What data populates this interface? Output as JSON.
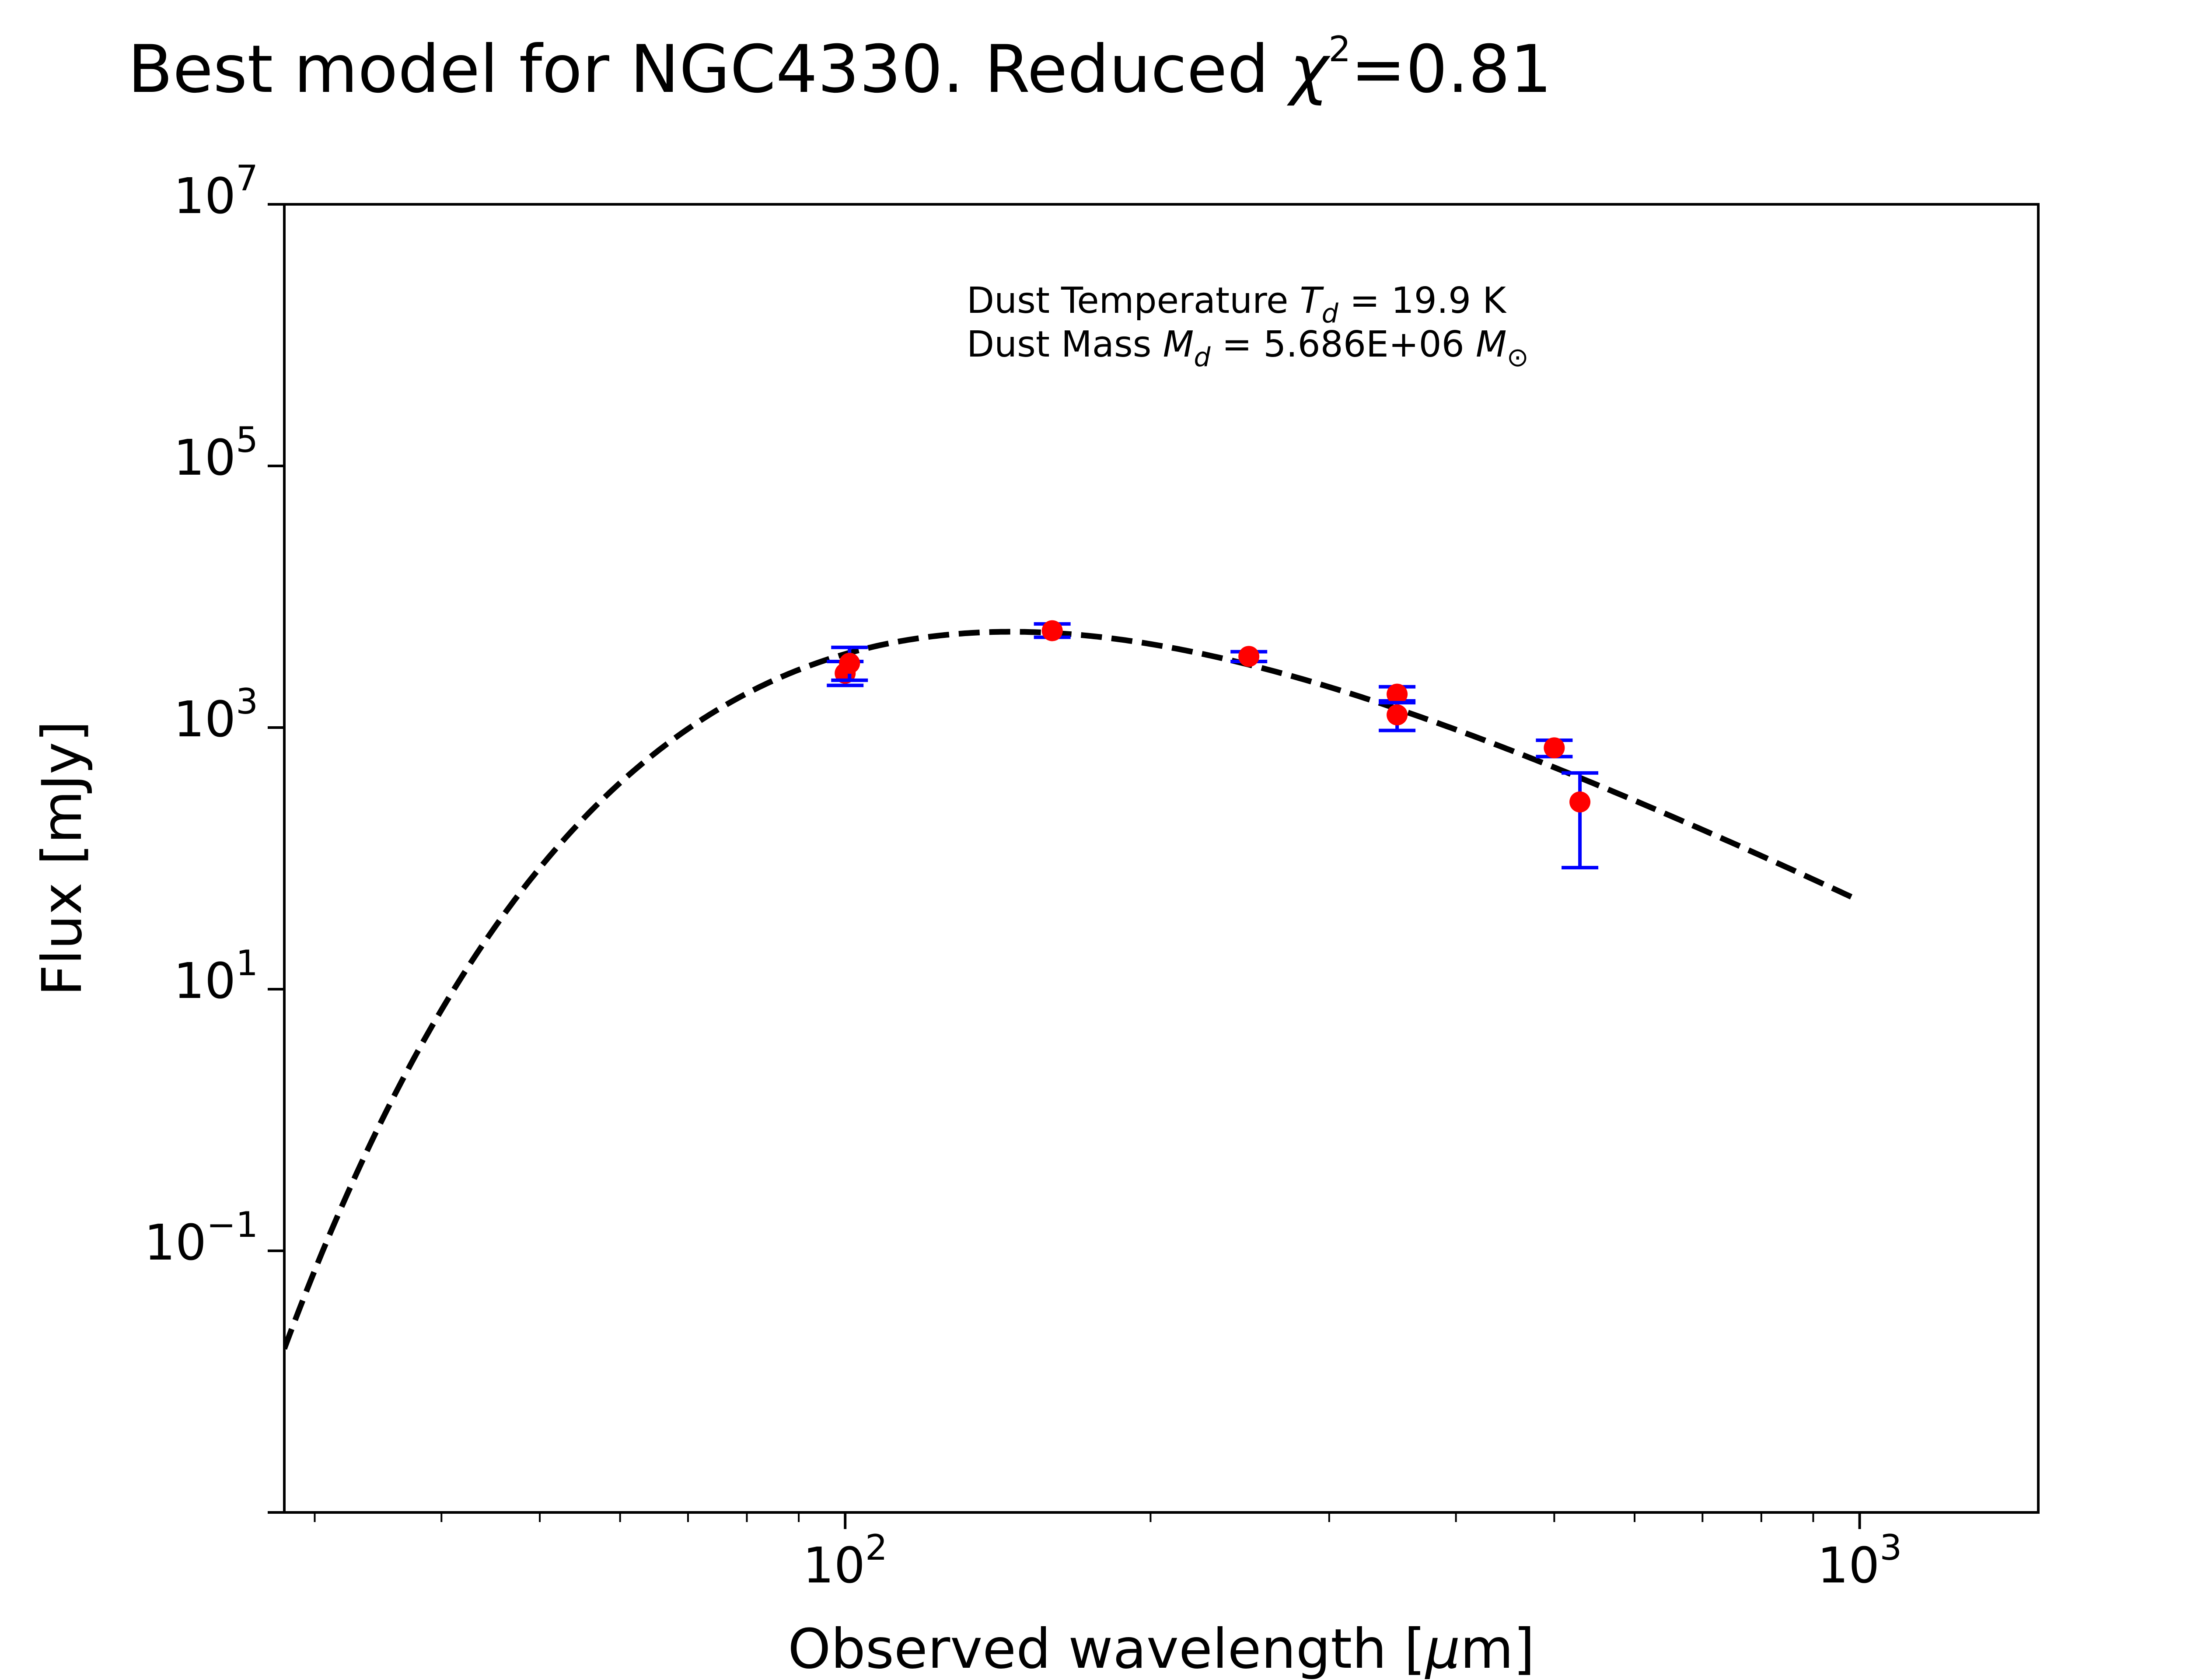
{
  "chart_data": {
    "type": "scatter",
    "title": {
      "main": "Best model for NGC4330. Reduced ",
      "chi_symbol": "χ",
      "chi_exponent": "2",
      "chi_value": "=0.81"
    },
    "xlabel": {
      "before": "Observed wavelength [",
      "mu": "μ",
      "after": "m]"
    },
    "ylabel": "Flux [mJy]",
    "xscale": "log",
    "yscale": "log",
    "xlim": [
      28,
      1500
    ],
    "ylim": [
      0.001,
      10000000
    ],
    "grid": false,
    "x_ticks": [
      {
        "value": 100,
        "base": "10",
        "exp": "2"
      },
      {
        "value": 1000,
        "base": "10",
        "exp": "3"
      }
    ],
    "y_ticks": [
      {
        "value": 0.1,
        "base": "10",
        "exp": "−1"
      },
      {
        "value": 10,
        "base": "10",
        "exp": "1"
      },
      {
        "value": 1000,
        "base": "10",
        "exp": "3"
      },
      {
        "value": 100000,
        "base": "10",
        "exp": "5"
      },
      {
        "value": 10000000,
        "base": "10",
        "exp": "7"
      }
    ],
    "annotations": {
      "temperature": {
        "prefix": "Dust Temperature ",
        "symbol": "T",
        "subscript": "d",
        "value": " = 19.9 K"
      },
      "mass": {
        "prefix": "Dust Mass ",
        "symbol": "M",
        "subscript": "d",
        "value": " = 5.686E+06 ",
        "unit_symbol": "M",
        "unit_subscript": "⊙"
      }
    },
    "series": [
      {
        "kind": "observed",
        "color": "#ff0000",
        "errorbar_color": "#0000ff",
        "points": [
          {
            "x": 100,
            "y": 2600,
            "ylo": 2100,
            "yhi": 3200
          },
          {
            "x": 101,
            "y": 3100,
            "ylo": 2300,
            "yhi": 4100
          },
          {
            "x": 160,
            "y": 5500,
            "ylo": 4900,
            "yhi": 6200
          },
          {
            "x": 250,
            "y": 3500,
            "ylo": 3200,
            "yhi": 3800
          },
          {
            "x": 350,
            "y": 1800,
            "ylo": 1600,
            "yhi": 2050
          },
          {
            "x": 350,
            "y": 1250,
            "ylo": 950,
            "yhi": 1550
          },
          {
            "x": 500,
            "y": 700,
            "ylo": 600,
            "yhi": 800
          },
          {
            "x": 530,
            "y": 270,
            "ylo": 85,
            "yhi": 450
          }
        ]
      },
      {
        "kind": "model",
        "style": "dashed",
        "color": "#000000",
        "model": "modified blackbody",
        "temperature_K": 19.9,
        "beta": 2.0,
        "peak_flux_mJy": 5400,
        "x_range": [
          28,
          1000
        ]
      }
    ]
  }
}
